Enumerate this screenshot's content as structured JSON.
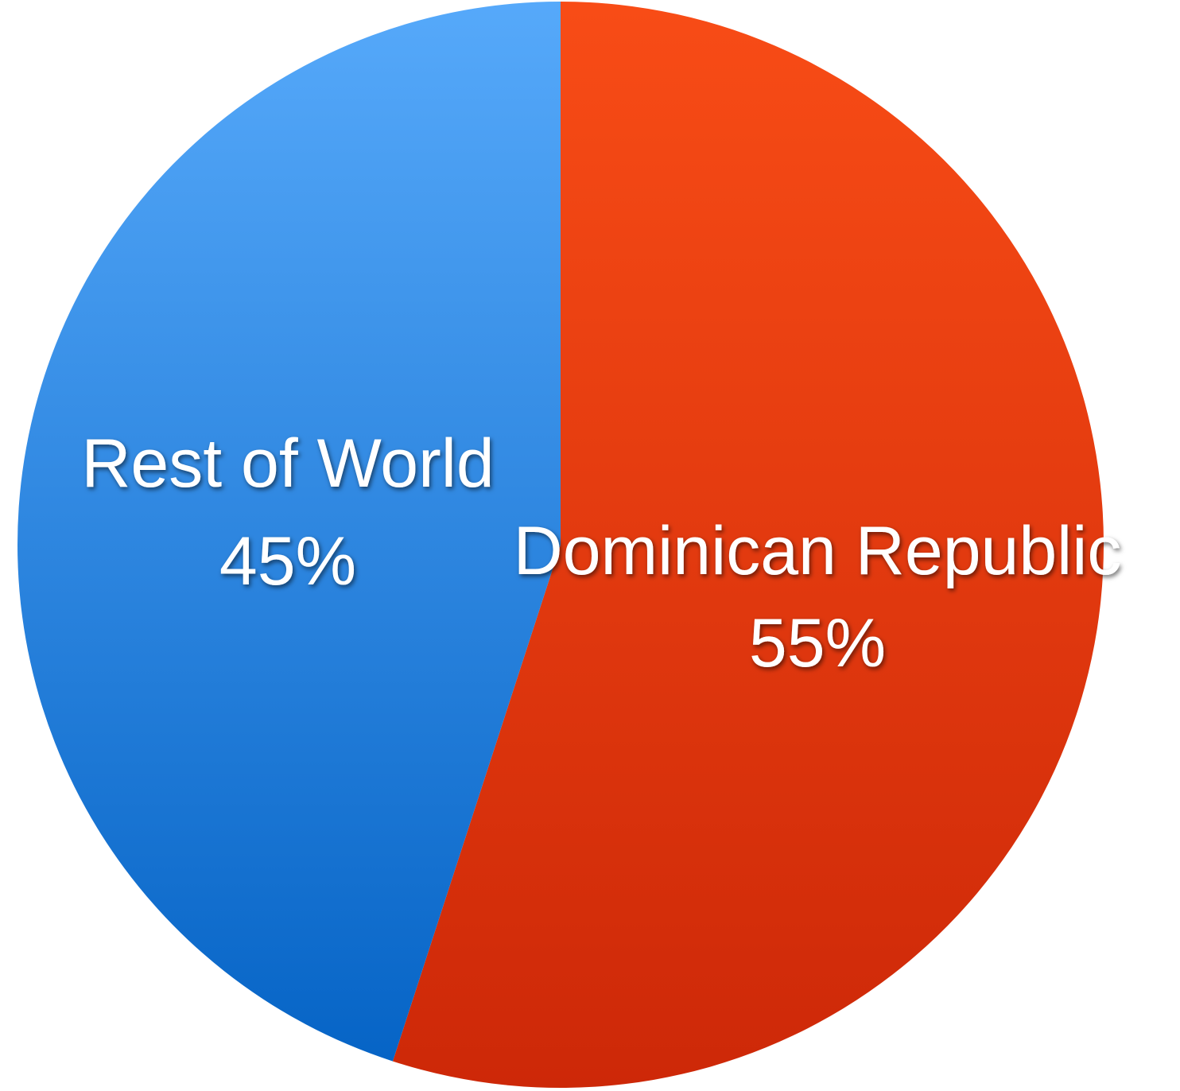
{
  "chart_data": {
    "type": "pie",
    "title": "",
    "slices": [
      {
        "label": "Dominican Republic",
        "value": 55,
        "value_label": "55%",
        "color": "#e0381a"
      },
      {
        "label": "Rest of World",
        "value": 45,
        "value_label": "45%",
        "color": "#2c88e2"
      }
    ],
    "start_angle_deg": 0,
    "direction": "clockwise",
    "legend": "none",
    "colors": {
      "dominican_republic_top": "#f84c16",
      "dominican_republic_bottom": "#cd2808",
      "rest_of_world_top": "#56a9fa",
      "rest_of_world_bottom": "#0664c6",
      "label_text": "#ffffff"
    }
  }
}
